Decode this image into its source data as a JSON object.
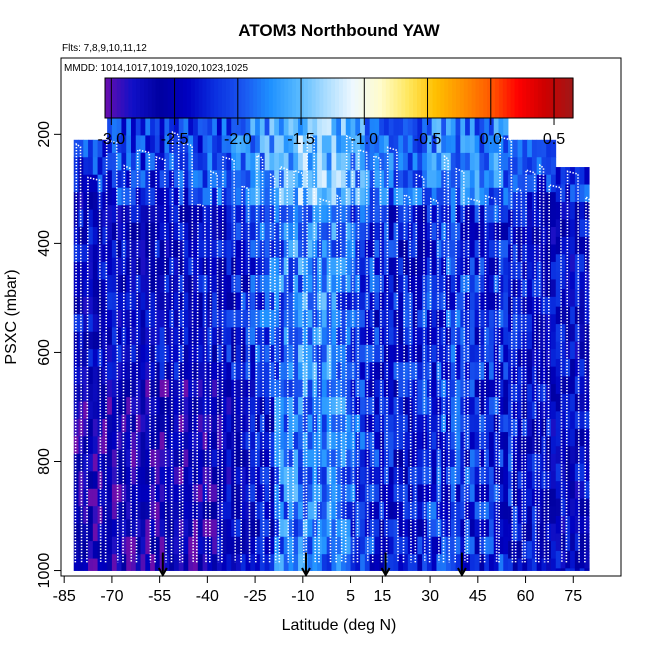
{
  "chart_data": {
    "type": "heatmap",
    "title": "ATOM3 Northbound YAW",
    "subtitle_flights": "Flts: 7,8,9,10,11,12",
    "subtitle_dates": "MMDD: 1014,1017,1019,1020,1023,1025",
    "xlabel": "Latitude (deg N)",
    "ylabel": "PSXC (mbar)",
    "xlim": [
      -86,
      90
    ],
    "ylim": [
      1010,
      60
    ],
    "x_ticks": [
      -85,
      -70,
      -55,
      -40,
      -25,
      -10,
      5,
      15,
      30,
      45,
      60,
      75
    ],
    "y_ticks": [
      200,
      400,
      600,
      800,
      1000
    ],
    "colorbar": {
      "min": -3.05,
      "max": 0.65,
      "ticks": [
        -3.0,
        -2.5,
        -2.0,
        -1.5,
        -1.0,
        -0.5,
        0.0,
        0.5
      ],
      "tick_labels": [
        "-3.0",
        "-2.5",
        "-2.0",
        "-1.5",
        "-1.0",
        "-0.5",
        "0.0",
        "0.5"
      ],
      "colors": [
        "#6a0dad",
        "#1010c8",
        "#0000a0",
        "#0000c0",
        "#0a30e0",
        "#1a55f0",
        "#1e90ff",
        "#55b8ff",
        "#a8dcff",
        "#eef8ff",
        "#fffccc",
        "#ffe860",
        "#ffc000",
        "#ff9000",
        "#ff5a00",
        "#ff0000",
        "#cc0000",
        "#a01818"
      ]
    },
    "data_extent": {
      "lat_min": -82,
      "lat_max": 80,
      "pressure_top": 170,
      "pressure_bottom": 1000
    },
    "column_tops_mbar": [
      {
        "lat_min": -82,
        "lat_max": -72,
        "top": 210
      },
      {
        "lat_min": -72,
        "lat_max": -9,
        "top": 170
      },
      {
        "lat_min": -9,
        "lat_max": 55,
        "top": 170
      },
      {
        "lat_min": 55,
        "lat_max": 70,
        "top": 210
      },
      {
        "lat_min": 70,
        "lat_max": 80,
        "top": 260
      }
    ],
    "flight_track_markers_lat": [
      -54,
      -9,
      16,
      40
    ],
    "series": [
      {
        "name": "yaw",
        "description": "binned mean yaw by latitude and pressure, values mostly between -3.0 and -1.4"
      }
    ]
  }
}
